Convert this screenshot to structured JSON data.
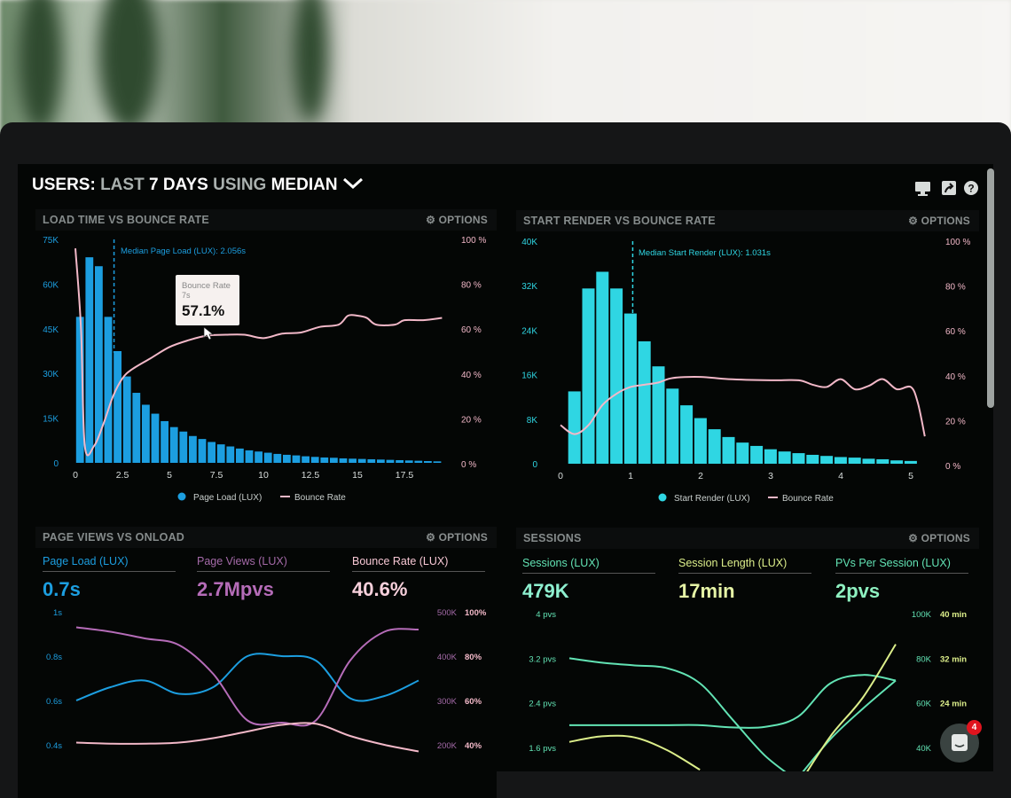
{
  "header": {
    "w1": "USERS:",
    "w2": "LAST",
    "w3": "7 DAYS",
    "w4": "USING",
    "w5": "MEDIAN",
    "icons": [
      "monitor-icon",
      "share-icon",
      "help-icon"
    ]
  },
  "options_label": "OPTIONS",
  "colors": {
    "blue": "#1c9ee0",
    "cyan": "#2fd6e3",
    "pink": "#f2b8c8",
    "purple": "#b56cb8",
    "teal": "#62e3b4",
    "yellow": "#dcee8a"
  },
  "chat": {
    "badge": "4"
  },
  "chart_data": [
    {
      "type": "bar",
      "title": "LOAD TIME VS BOUNCE RATE",
      "y_ticks": [
        "0",
        "15K",
        "30K",
        "45K",
        "60K",
        "75K"
      ],
      "y2_ticks": [
        "0 %",
        "20 %",
        "40 %",
        "60 %",
        "80 %",
        "100 %"
      ],
      "x_ticks": [
        "0",
        "2.5",
        "5",
        "7.5",
        "10",
        "12.5",
        "15",
        "17.5"
      ],
      "ylim": [
        0,
        75000
      ],
      "y2lim": [
        0,
        100
      ],
      "xlim": [
        0,
        20
      ],
      "bin_width": 0.5,
      "bars": {
        "name": "Page Load (LUX)",
        "values": [
          49000,
          69000,
          66000,
          49000,
          37500,
          29000,
          23500,
          19500,
          16500,
          14000,
          12000,
          10500,
          9000,
          8000,
          7000,
          6200,
          5500,
          4800,
          4200,
          3800,
          3400,
          3000,
          2700,
          2500,
          2200,
          2000,
          1800,
          1700,
          1500,
          1400,
          1300,
          1200,
          1100,
          1000,
          900,
          800,
          700,
          600,
          500
        ]
      },
      "line": {
        "name": "Bounce Rate",
        "x": [
          0,
          0.3,
          0.5,
          1,
          1.5,
          2,
          2.5,
          3,
          4,
          5,
          6,
          7,
          8,
          9,
          10,
          11,
          12,
          13,
          14,
          14.5,
          15,
          15.5,
          16,
          17,
          17.5,
          18.5,
          19.5
        ],
        "y": [
          96,
          60,
          8,
          8,
          18,
          30,
          38,
          42,
          47,
          52,
          55,
          57.1,
          57.5,
          57.5,
          56,
          58,
          58.5,
          61,
          62,
          66,
          66,
          65,
          62,
          62,
          64,
          64,
          65
        ]
      },
      "median": {
        "value": 2.056,
        "label": "Median Page Load (LUX): 2.056s"
      },
      "tooltip": {
        "title": "Bounce Rate",
        "x": "7s",
        "value": "57.1%"
      }
    },
    {
      "type": "bar",
      "title": "START RENDER VS BOUNCE RATE",
      "y_ticks": [
        "0",
        "8K",
        "16K",
        "24K",
        "32K",
        "40K"
      ],
      "y2_ticks": [
        "0 %",
        "20 %",
        "40 %",
        "60 %",
        "80 %",
        "100 %"
      ],
      "x_ticks": [
        "0",
        "1",
        "2",
        "3",
        "4",
        "5"
      ],
      "ylim": [
        0,
        40000
      ],
      "y2lim": [
        0,
        100
      ],
      "xlim": [
        0,
        5.2
      ],
      "bin_width": 0.2,
      "bars": {
        "name": "Start Render (LUX)",
        "values": [
          13000,
          31500,
          34500,
          31500,
          27000,
          22000,
          17500,
          13500,
          10500,
          8200,
          6200,
          4800,
          3800,
          3200,
          2600,
          2200,
          1900,
          1600,
          1400,
          1200,
          1100,
          900,
          800,
          600,
          500
        ]
      },
      "line": {
        "name": "Bounce Rate",
        "x": [
          0,
          0.2,
          0.4,
          0.6,
          0.8,
          1,
          1.2,
          1.4,
          1.6,
          2,
          2.4,
          3,
          3.4,
          3.6,
          3.8,
          4,
          4.2,
          4.4,
          4.6,
          4.8,
          5,
          5.1,
          5.2
        ],
        "y": [
          18,
          14,
          18,
          27,
          32,
          35,
          36,
          37,
          39,
          39.5,
          38.5,
          38,
          38,
          36,
          35,
          38.5,
          34,
          35.5,
          38.5,
          34,
          35,
          28,
          13
        ]
      },
      "median": {
        "value": 1.031,
        "label": "Median Start Render (LUX): 1.031s"
      }
    },
    {
      "type": "line",
      "title": "PAGE VIEWS VS ONLOAD",
      "kpis": [
        {
          "label": "Page Load (LUX)",
          "value": "0.7s"
        },
        {
          "label": "Page Views (LUX)",
          "value": "2.7Mpvs"
        },
        {
          "label": "Bounce Rate (LUX)",
          "value": "40.6%"
        }
      ],
      "y_ticks": [
        "0.4s",
        "0.6s",
        "0.8s",
        "1s"
      ],
      "y2_ticks": [
        "200K",
        "300K",
        "400K",
        "500K"
      ],
      "y3_ticks": [
        "40%",
        "60%",
        "80%",
        "100%"
      ],
      "ylim": [
        0.4,
        1
      ],
      "series": [
        {
          "axis": "s",
          "values": [
            0.6,
            0.66,
            0.69,
            0.63,
            0.66,
            0.8,
            0.8,
            0.78,
            0.61,
            0.62,
            0.69
          ]
        },
        {
          "axis": "pv",
          "values": [
            465000,
            455000,
            440000,
            425000,
            360000,
            255000,
            250000,
            255000,
            390000,
            455000,
            460000
          ]
        },
        {
          "axis": "pct",
          "values": [
            41,
            40.5,
            40.5,
            41,
            43,
            46,
            49,
            49.5,
            44,
            40,
            37
          ]
        }
      ]
    },
    {
      "type": "line",
      "title": "SESSIONS",
      "kpis": [
        {
          "label": "Sessions (LUX)",
          "value": "479K"
        },
        {
          "label": "Session Length (LUX)",
          "value": "17min"
        },
        {
          "label": "PVs Per Session (LUX)",
          "value": "2pvs"
        }
      ],
      "y_ticks": [
        "1.6 pvs",
        "2.4 pvs",
        "3.2 pvs",
        "4 pvs"
      ],
      "y2_ticks": [
        "40K",
        "60K",
        "80K",
        "100K"
      ],
      "y3_ticks": [
        "",
        "24 min",
        "32 min",
        "40 min"
      ],
      "ylim": [
        1.6,
        4
      ],
      "series": [
        {
          "values": [
            3.2,
            3.12,
            3.07,
            3.02,
            2.75,
            2.1,
            1.45,
            1.0,
            null,
            null,
            null
          ]
        },
        {
          "values": [
            2.0,
            2.0,
            2.0,
            2.0,
            2.0,
            1.96,
            1.97,
            2.15,
            2.75,
            2.9,
            2.8
          ]
        },
        {
          "values": [
            null,
            null,
            null,
            null,
            null,
            null,
            null,
            1.05,
            1.75,
            2.3,
            2.8
          ]
        },
        {
          "values": [
            1.7,
            1.8,
            1.78,
            1.55,
            1.2,
            null,
            null,
            null,
            null,
            null,
            null
          ]
        },
        {
          "values": [
            null,
            null,
            null,
            null,
            null,
            null,
            null,
            0.9,
            1.8,
            2.5,
            3.45
          ]
        }
      ]
    }
  ]
}
